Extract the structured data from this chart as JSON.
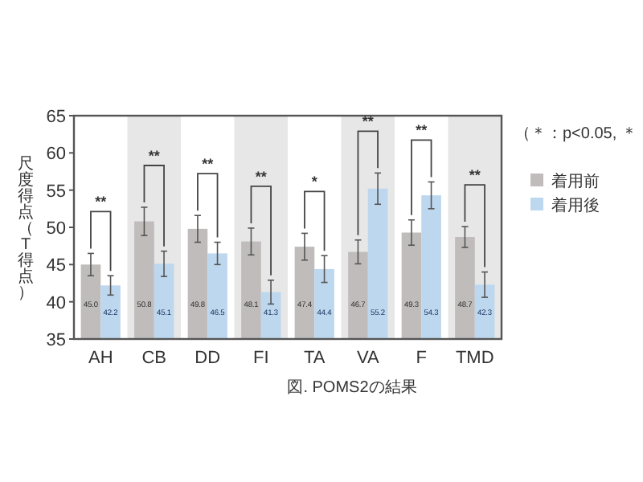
{
  "chart_data": {
    "type": "bar",
    "title": "図. POMS2の結果",
    "ylabel": "尺度得点（T得点）",
    "categories": [
      "AH",
      "CB",
      "DD",
      "FI",
      "TA",
      "VA",
      "F",
      "TMD"
    ],
    "series": [
      {
        "name": "着用前",
        "color": "#bfbcbb",
        "values": [
          45.0,
          50.8,
          49.8,
          48.1,
          47.4,
          46.7,
          49.3,
          48.7
        ],
        "errors": [
          1.5,
          1.9,
          1.8,
          1.8,
          1.8,
          1.6,
          1.7,
          1.4
        ],
        "value_labels": [
          "45.0",
          "50.8",
          "49.8",
          "48.1",
          "47.4",
          "46.7",
          "49.3",
          "48.7"
        ]
      },
      {
        "name": "着用後",
        "color": "#bdd7ee",
        "values": [
          42.2,
          45.1,
          46.5,
          41.3,
          44.4,
          55.2,
          54.3,
          42.3
        ],
        "errors": [
          1.3,
          1.7,
          1.5,
          1.6,
          1.8,
          2.1,
          1.8,
          1.7
        ],
        "value_labels": [
          "42.2",
          "45.1",
          "46.5",
          "41.3",
          "44.4",
          "55.2",
          "54.3",
          "42.3"
        ]
      }
    ],
    "ylim": [
      35,
      65
    ],
    "yticks": [
      35,
      40,
      45,
      50,
      55,
      60,
      65
    ],
    "grid": false,
    "legend": "right",
    "bands": [
      {
        "axis": "x",
        "from": "CB",
        "to": "CB",
        "color": "#e7e7e7"
      },
      {
        "axis": "x",
        "from": "FI",
        "to": "FI",
        "color": "#e7e7e7"
      },
      {
        "axis": "x",
        "from": "VA",
        "to": "VA",
        "color": "#e7e7e7"
      },
      {
        "axis": "x",
        "from": "TMD",
        "to": "TMD",
        "color": "#e7e7e7"
      }
    ],
    "annotations": [
      "**",
      "**",
      "**",
      "**",
      "*",
      "**",
      "**",
      "**",
      "（＊：p<0.05, ＊"
    ]
  }
}
